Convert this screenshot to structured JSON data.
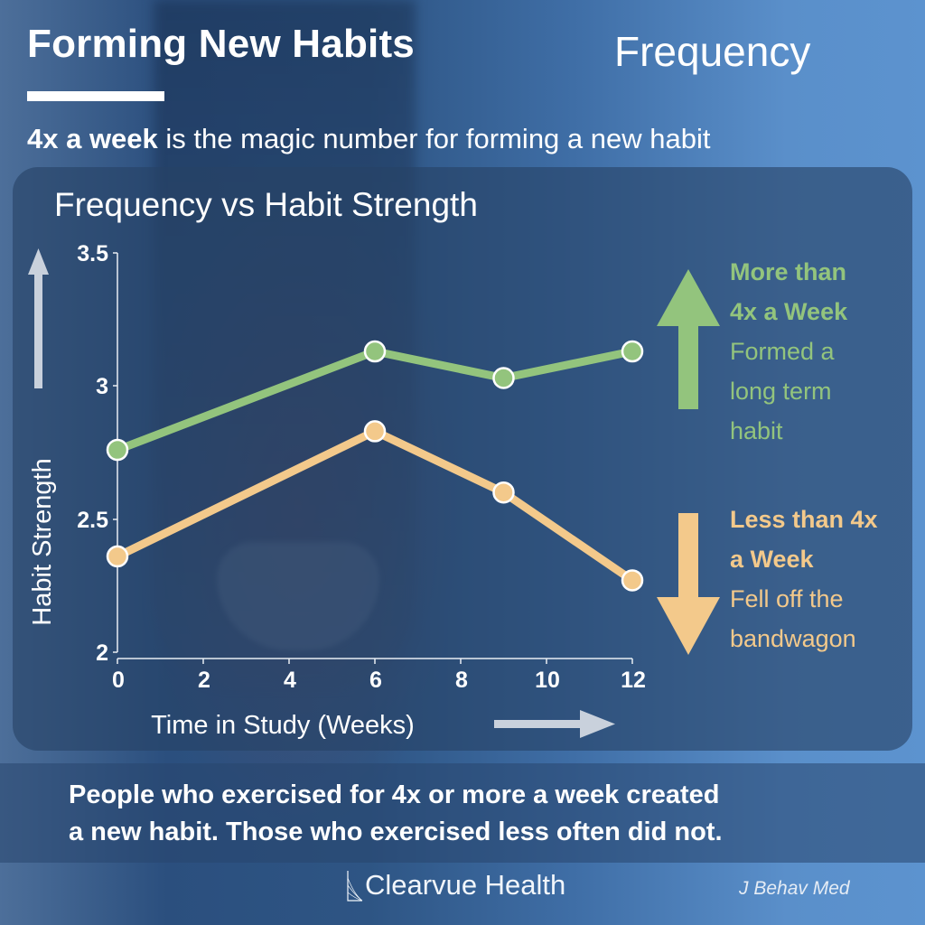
{
  "header": {
    "title": "Forming New Habits",
    "topic": "Frequency",
    "tagline_bold": "4x a week",
    "tagline_rest": " is the magic number for forming a new habit"
  },
  "chart_data": {
    "type": "line",
    "title": "Frequency vs Habit Strength",
    "xlabel": "Time in Study (Weeks)",
    "ylabel": "Habit Strength",
    "xlim": [
      0,
      12
    ],
    "ylim": [
      2,
      3.5
    ],
    "x_ticks": [
      "0",
      "2",
      "4",
      "6",
      "8",
      "10",
      "12"
    ],
    "y_ticks": [
      "2",
      "2.5",
      "3",
      "3.5"
    ],
    "grid": false,
    "x": [
      0,
      6,
      9,
      12
    ],
    "series": [
      {
        "name": "More than 4x a Week",
        "color": "#93c47d",
        "values": [
          2.76,
          3.13,
          3.03,
          3.13
        ]
      },
      {
        "name": "Less than 4x a Week",
        "color": "#f3c98b",
        "values": [
          2.36,
          2.83,
          2.6,
          2.27
        ]
      }
    ],
    "legend_position": "right"
  },
  "legend": {
    "more": {
      "head_line1": "More than",
      "head_line2": "4x a Week",
      "desc1": "Formed a",
      "desc2": "long term",
      "desc3": "habit"
    },
    "less": {
      "head_line1": "Less than 4x",
      "head_line2": "a Week",
      "desc1": "Fell off the",
      "desc2": "bandwagon"
    }
  },
  "takeaway": {
    "line1": "People who exercised for 4x or more a week created",
    "line2": "a new habit. Those who exercised less often did not."
  },
  "footer": {
    "brand": "Clearvue Health",
    "source": "J Behav Med"
  },
  "colors": {
    "green": "#93c47d",
    "orange": "#f3c98b",
    "panel": "#264266"
  }
}
